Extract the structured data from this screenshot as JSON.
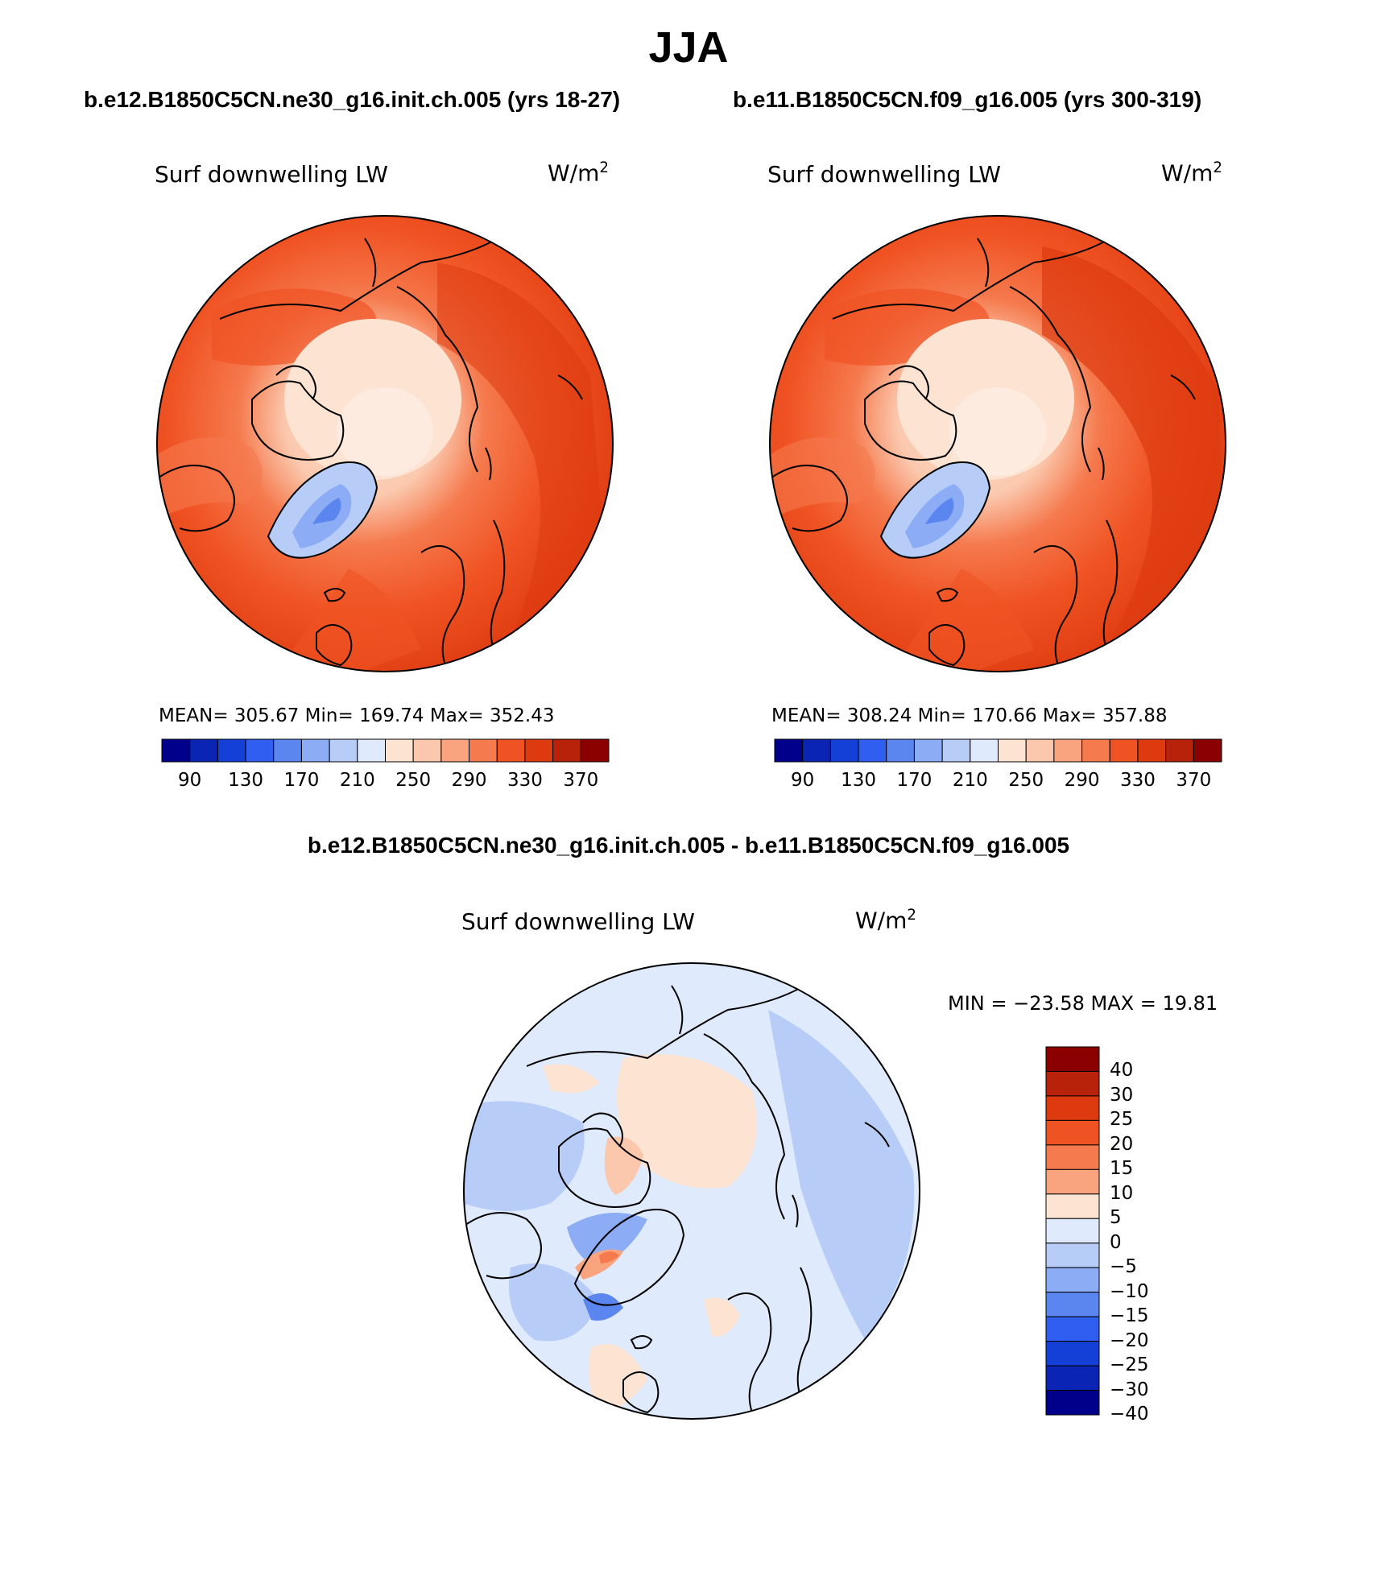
{
  "title": "JJA",
  "panels": [
    {
      "case": "b.e12.B1850C5CN.ne30_g16.init.ch.005 (yrs 18-27)",
      "variable": "Surf downwelling LW",
      "units": "W/m",
      "units_sup": "2",
      "stats": "MEAN= 305.67   Min= 169.74   Max= 352.43"
    },
    {
      "case": "b.e11.B1850C5CN.f09_g16.005 (yrs 300-319)",
      "variable": "Surf downwelling LW",
      "units": "W/m",
      "units_sup": "2",
      "stats": "MEAN= 308.24   Min= 170.66   Max= 357.88"
    }
  ],
  "abs_colorbar": {
    "colors": [
      "#00008b",
      "#0a24b4",
      "#1440d8",
      "#2f5ef0",
      "#5b86f0",
      "#8cacf5",
      "#b7cdf7",
      "#dfeafc",
      "#fde3d2",
      "#fbc8ad",
      "#f9a37f",
      "#f57a4e",
      "#f05323",
      "#dd3a0f",
      "#b9220a",
      "#8b0000"
    ],
    "tick_labels": [
      "90",
      "130",
      "170",
      "210",
      "250",
      "290",
      "330",
      "370"
    ]
  },
  "diff": {
    "title": "b.e12.B1850C5CN.ne30_g16.init.ch.005 - b.e11.B1850C5CN.f09_g16.005",
    "variable": "Surf downwelling LW",
    "units": "W/m",
    "units_sup": "2",
    "minmax": "MIN = −23.58 MAX =   19.81"
  },
  "diff_colorbar": {
    "colors": [
      "#8b0000",
      "#b9220a",
      "#dd3a0f",
      "#f05323",
      "#f57a4e",
      "#f9a37f",
      "#fde3d2",
      "#dfeafc",
      "#b7cdf7",
      "#8cacf5",
      "#5b86f0",
      "#2f5ef0",
      "#1440d8",
      "#0a24b4",
      "#00008b"
    ],
    "tick_labels": [
      "40",
      "30",
      "25",
      "20",
      "15",
      "10",
      "5",
      "0",
      "−5",
      "−10",
      "−15",
      "−20",
      "−25",
      "−30",
      "−40"
    ]
  },
  "chart_data": [
    {
      "type": "heatmap",
      "title": "Surf downwelling LW",
      "subtitle": "b.e12.B1850C5CN.ne30_g16.init.ch.005 (yrs 18-27)",
      "projection": "north polar stereographic",
      "units": "W/m2",
      "levels": [
        90,
        130,
        170,
        210,
        250,
        290,
        330,
        370
      ],
      "mean": 305.67,
      "min": 169.74,
      "max": 352.43
    },
    {
      "type": "heatmap",
      "title": "Surf downwelling LW",
      "subtitle": "b.e11.B1850C5CN.f09_g16.005 (yrs 300-319)",
      "projection": "north polar stereographic",
      "units": "W/m2",
      "levels": [
        90,
        130,
        170,
        210,
        250,
        290,
        330,
        370
      ],
      "mean": 308.24,
      "min": 170.66,
      "max": 357.88
    },
    {
      "type": "heatmap",
      "title": "Surf downwelling LW",
      "subtitle": "b.e12.B1850C5CN.ne30_g16.init.ch.005 - b.e11.B1850C5CN.f09_g16.005",
      "projection": "north polar stereographic",
      "units": "W/m2",
      "levels": [
        -40,
        -30,
        -25,
        -20,
        -15,
        -10,
        -5,
        0,
        5,
        10,
        15,
        20,
        25,
        30,
        40
      ],
      "min": -23.58,
      "max": 19.81
    }
  ]
}
